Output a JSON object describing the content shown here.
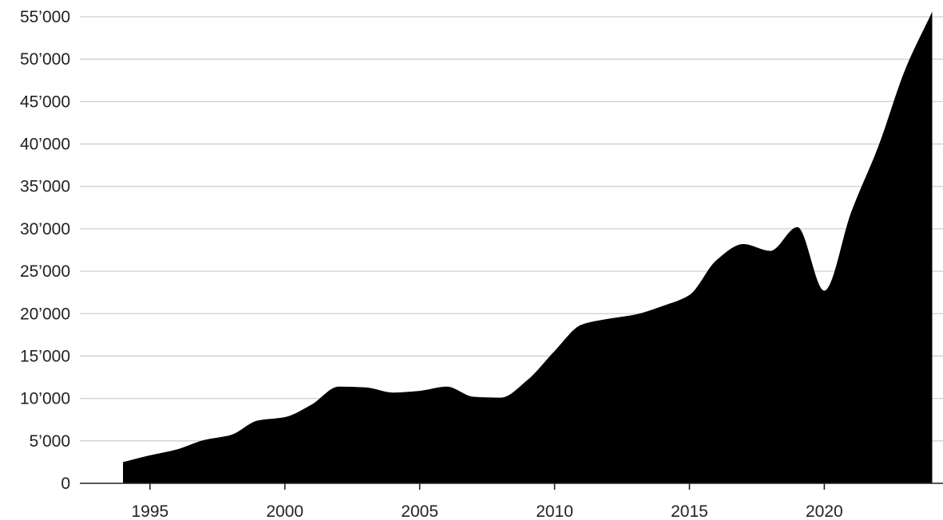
{
  "chart_data": {
    "type": "area",
    "title": "",
    "xlabel": "",
    "ylabel": "",
    "x": [
      1994,
      1995,
      1996,
      1997,
      1998,
      1999,
      2000,
      2001,
      2002,
      2003,
      2004,
      2005,
      2006,
      2007,
      2008,
      2009,
      2010,
      2011,
      2012,
      2013,
      2014,
      2015,
      2016,
      2017,
      2018,
      2019,
      2020,
      2021,
      2022,
      2023,
      2024
    ],
    "series": [
      {
        "color": "#000000",
        "values": [
          2500,
          3300,
          4000,
          5100,
          5700,
          7400,
          7800,
          9300,
          11400,
          11300,
          10700,
          10900,
          11400,
          10200,
          10100,
          12200,
          15600,
          18700,
          19400,
          19900,
          20900,
          22200,
          26300,
          28200,
          27400,
          30200,
          22700,
          32000,
          39700,
          48800,
          55600
        ]
      }
    ],
    "xlim": [
      1992.4,
      2024.4
    ],
    "ylim": [
      0,
      55000
    ],
    "x_ticks": [
      1995,
      2000,
      2005,
      2010,
      2015,
      2020
    ],
    "x_tick_labels": [
      "1995",
      "2000",
      "2005",
      "2010",
      "2015",
      "2020"
    ],
    "y_ticks": [
      0,
      5000,
      10000,
      15000,
      20000,
      25000,
      30000,
      35000,
      40000,
      45000,
      50000,
      55000
    ],
    "y_tick_labels": [
      "0",
      "5’000",
      "10’000",
      "15’000",
      "20’000",
      "25’000",
      "30’000",
      "35’000",
      "40’000",
      "45’000",
      "50’000",
      "55’000"
    ],
    "grid": true,
    "legend": "none"
  }
}
